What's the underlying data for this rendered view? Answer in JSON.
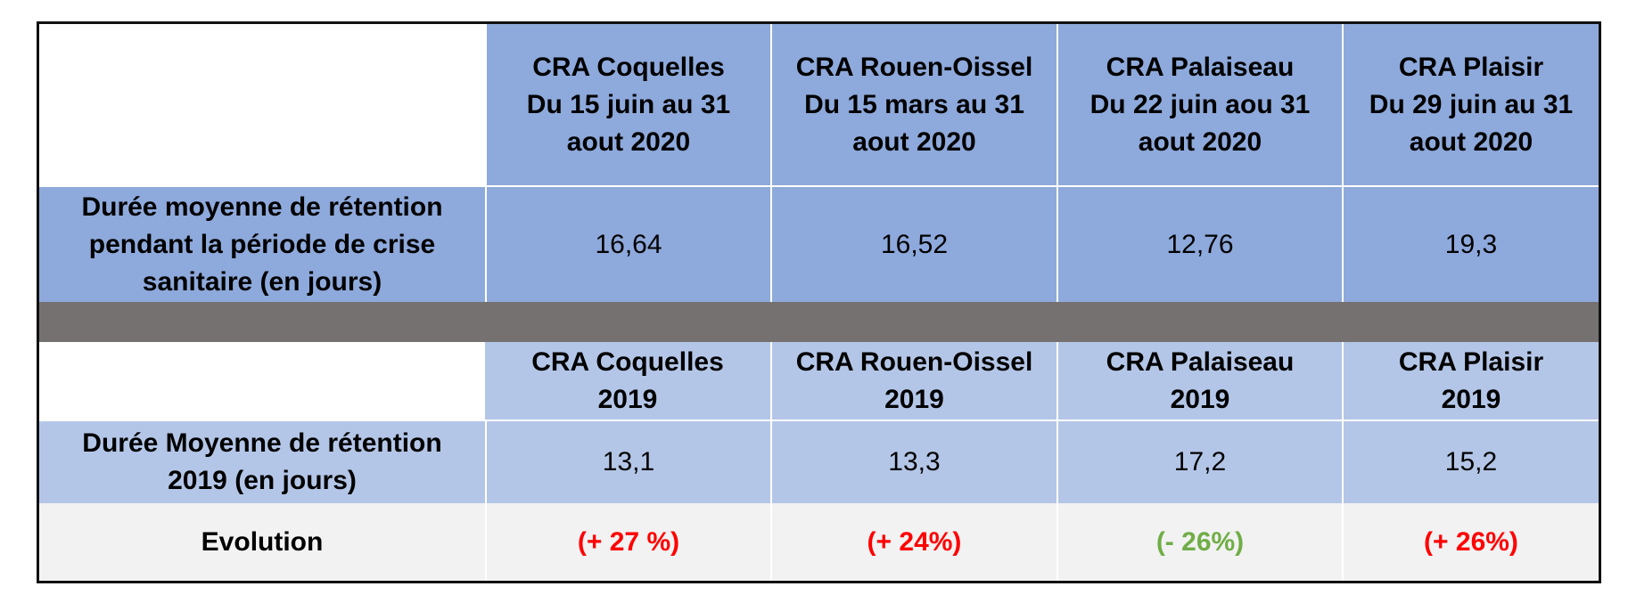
{
  "table": {
    "header_2020": [
      "CRA Coquelles\nDu 15 juin au 31\naout 2020",
      "CRA Rouen-Oissel\nDu 15 mars au 31\naout 2020",
      "CRA Palaiseau\nDu 22 juin aou 31\naout 2020",
      "CRA Plaisir\nDu 29 juin au 31\naout 2020"
    ],
    "row_2020": {
      "label": "Durée moyenne de rétention\npendant la période de crise\nsanitaire (en jours)",
      "values": [
        "16,64",
        "16,52",
        "12,76",
        "19,3"
      ]
    },
    "header_2019": [
      "CRA Coquelles\n2019",
      "CRA Rouen-Oissel\n2019",
      "CRA Palaiseau\n2019",
      "CRA Plaisir\n2019"
    ],
    "row_2019": {
      "label": "Durée Moyenne de rétention\n2019 (en jours)",
      "values": [
        "13,1",
        "13,3",
        "17,2",
        "15,2"
      ]
    },
    "row_evolution": {
      "label": "Evolution",
      "values": [
        "(+ 27 %)",
        "(+ 24%)",
        "(- 26%)",
        "(+ 26%)"
      ]
    }
  },
  "colors": {
    "header_dark": "#8ea9db",
    "header_light": "#b4c6e7",
    "separator": "#767171",
    "evolution_row": "#f2f2f2",
    "increase": "#ff0000",
    "decrease": "#70ad47"
  }
}
